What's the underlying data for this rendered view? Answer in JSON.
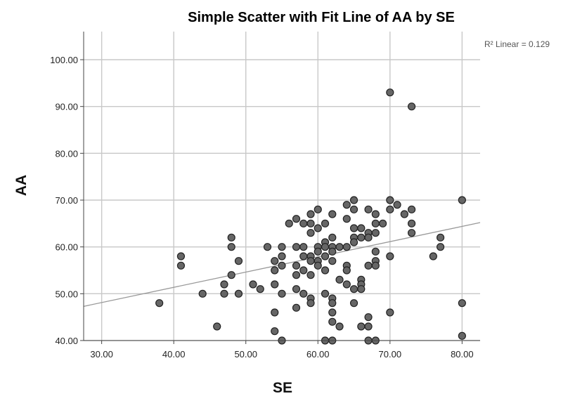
{
  "chart_data": {
    "type": "scatter",
    "title": "Simple Scatter with Fit Line of AA by SE",
    "xlabel": "SE",
    "ylabel": "AA",
    "xlim": [
      27.5,
      82.5
    ],
    "ylim": [
      40,
      106
    ],
    "xticks": [
      30,
      40,
      50,
      60,
      70,
      80
    ],
    "yticks": [
      40,
      50,
      60,
      70,
      80,
      90,
      100
    ],
    "xtick_labels": [
      "30.00",
      "40.00",
      "50.00",
      "60.00",
      "70.00",
      "80.00"
    ],
    "ytick_labels": [
      "40.00",
      "50.00",
      "60.00",
      "70.00",
      "80.00",
      "90.00",
      "100.00"
    ],
    "grid": true,
    "annotation": "R² Linear = 0.129",
    "point_color": "#666666",
    "point_edge_color": "#222222",
    "fit_line_color": "#999999",
    "fit_line": {
      "x": [
        27.5,
        82.5
      ],
      "y": [
        47.3,
        65.2
      ]
    },
    "points": [
      {
        "x": 38,
        "y": 48
      },
      {
        "x": 41,
        "y": 58
      },
      {
        "x": 41,
        "y": 56
      },
      {
        "x": 44,
        "y": 50
      },
      {
        "x": 46,
        "y": 43
      },
      {
        "x": 47,
        "y": 52
      },
      {
        "x": 47,
        "y": 50
      },
      {
        "x": 48,
        "y": 62
      },
      {
        "x": 48,
        "y": 60
      },
      {
        "x": 48,
        "y": 54
      },
      {
        "x": 49,
        "y": 57
      },
      {
        "x": 49,
        "y": 50
      },
      {
        "x": 51,
        "y": 52
      },
      {
        "x": 52,
        "y": 51
      },
      {
        "x": 53,
        "y": 60
      },
      {
        "x": 54,
        "y": 57
      },
      {
        "x": 54,
        "y": 55
      },
      {
        "x": 54,
        "y": 52
      },
      {
        "x": 54,
        "y": 46
      },
      {
        "x": 54,
        "y": 42
      },
      {
        "x": 55,
        "y": 60
      },
      {
        "x": 55,
        "y": 58
      },
      {
        "x": 55,
        "y": 56
      },
      {
        "x": 55,
        "y": 50
      },
      {
        "x": 55,
        "y": 40
      },
      {
        "x": 56,
        "y": 65
      },
      {
        "x": 57,
        "y": 66
      },
      {
        "x": 57,
        "y": 60
      },
      {
        "x": 57,
        "y": 56
      },
      {
        "x": 57,
        "y": 54
      },
      {
        "x": 57,
        "y": 51
      },
      {
        "x": 57,
        "y": 47
      },
      {
        "x": 58,
        "y": 65
      },
      {
        "x": 58,
        "y": 60
      },
      {
        "x": 58,
        "y": 58
      },
      {
        "x": 58,
        "y": 55
      },
      {
        "x": 58,
        "y": 50
      },
      {
        "x": 59,
        "y": 67
      },
      {
        "x": 59,
        "y": 65
      },
      {
        "x": 59,
        "y": 63
      },
      {
        "x": 59,
        "y": 58
      },
      {
        "x": 59,
        "y": 57
      },
      {
        "x": 59,
        "y": 54
      },
      {
        "x": 59,
        "y": 49
      },
      {
        "x": 59,
        "y": 48
      },
      {
        "x": 60,
        "y": 68
      },
      {
        "x": 60,
        "y": 64
      },
      {
        "x": 60,
        "y": 60
      },
      {
        "x": 60,
        "y": 59
      },
      {
        "x": 60,
        "y": 57
      },
      {
        "x": 60,
        "y": 56
      },
      {
        "x": 61,
        "y": 65
      },
      {
        "x": 61,
        "y": 61
      },
      {
        "x": 61,
        "y": 60
      },
      {
        "x": 61,
        "y": 58
      },
      {
        "x": 61,
        "y": 55
      },
      {
        "x": 61,
        "y": 50
      },
      {
        "x": 61,
        "y": 40
      },
      {
        "x": 62,
        "y": 67
      },
      {
        "x": 62,
        "y": 62
      },
      {
        "x": 62,
        "y": 60
      },
      {
        "x": 62,
        "y": 59
      },
      {
        "x": 62,
        "y": 57
      },
      {
        "x": 62,
        "y": 49
      },
      {
        "x": 62,
        "y": 48
      },
      {
        "x": 62,
        "y": 46
      },
      {
        "x": 62,
        "y": 44
      },
      {
        "x": 62,
        "y": 40
      },
      {
        "x": 63,
        "y": 60
      },
      {
        "x": 63,
        "y": 53
      },
      {
        "x": 63,
        "y": 43
      },
      {
        "x": 64,
        "y": 69
      },
      {
        "x": 64,
        "y": 66
      },
      {
        "x": 64,
        "y": 60
      },
      {
        "x": 64,
        "y": 56
      },
      {
        "x": 64,
        "y": 55
      },
      {
        "x": 64,
        "y": 52
      },
      {
        "x": 65,
        "y": 70
      },
      {
        "x": 65,
        "y": 68
      },
      {
        "x": 65,
        "y": 64
      },
      {
        "x": 65,
        "y": 62
      },
      {
        "x": 65,
        "y": 61
      },
      {
        "x": 65,
        "y": 51
      },
      {
        "x": 65,
        "y": 48
      },
      {
        "x": 66,
        "y": 64
      },
      {
        "x": 66,
        "y": 62
      },
      {
        "x": 66,
        "y": 53
      },
      {
        "x": 66,
        "y": 52
      },
      {
        "x": 66,
        "y": 51
      },
      {
        "x": 66,
        "y": 43
      },
      {
        "x": 67,
        "y": 68
      },
      {
        "x": 67,
        "y": 63
      },
      {
        "x": 67,
        "y": 62
      },
      {
        "x": 67,
        "y": 56
      },
      {
        "x": 67,
        "y": 45
      },
      {
        "x": 67,
        "y": 43
      },
      {
        "x": 67,
        "y": 40
      },
      {
        "x": 68,
        "y": 67
      },
      {
        "x": 68,
        "y": 65
      },
      {
        "x": 68,
        "y": 63
      },
      {
        "x": 68,
        "y": 59
      },
      {
        "x": 68,
        "y": 57
      },
      {
        "x": 68,
        "y": 56
      },
      {
        "x": 68,
        "y": 40
      },
      {
        "x": 69,
        "y": 65
      },
      {
        "x": 70,
        "y": 93
      },
      {
        "x": 70,
        "y": 70
      },
      {
        "x": 70,
        "y": 68
      },
      {
        "x": 70,
        "y": 58
      },
      {
        "x": 70,
        "y": 46
      },
      {
        "x": 71,
        "y": 69
      },
      {
        "x": 72,
        "y": 67
      },
      {
        "x": 73,
        "y": 90
      },
      {
        "x": 73,
        "y": 68
      },
      {
        "x": 73,
        "y": 65
      },
      {
        "x": 73,
        "y": 63
      },
      {
        "x": 76,
        "y": 58
      },
      {
        "x": 77,
        "y": 62
      },
      {
        "x": 77,
        "y": 60
      },
      {
        "x": 80,
        "y": 70
      },
      {
        "x": 80,
        "y": 48
      },
      {
        "x": 80,
        "y": 41
      }
    ]
  }
}
